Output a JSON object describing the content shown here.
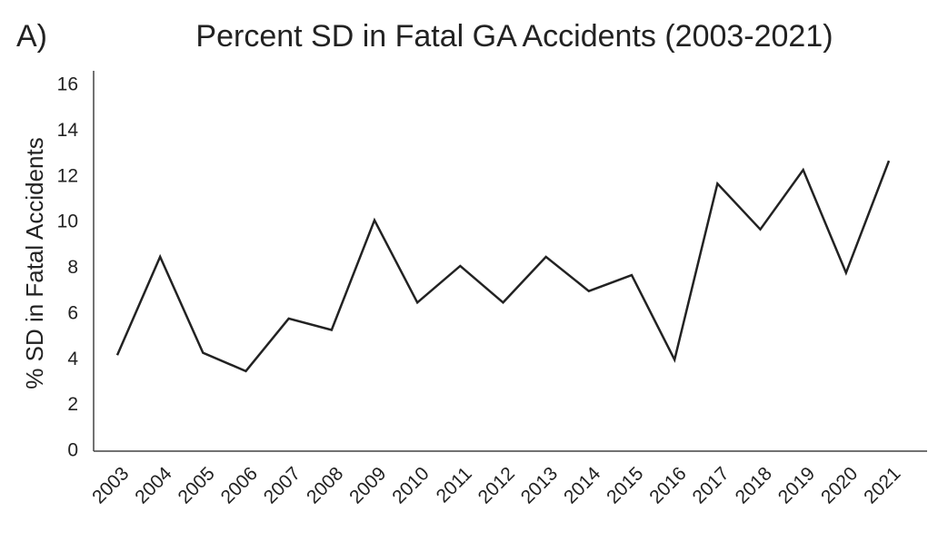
{
  "chart_data": {
    "type": "line",
    "panel_label": "A)",
    "title": "Percent SD in Fatal GA Accidents (2003-2021)",
    "y_label": "% SD in Fatal Accidents",
    "categories": [
      "2003",
      "2004",
      "2005",
      "2006",
      "2007",
      "2008",
      "2009",
      "2010",
      "2011",
      "2012",
      "2013",
      "2014",
      "2015",
      "2016",
      "2017",
      "2018",
      "2019",
      "2020",
      "2021"
    ],
    "values": [
      4.2,
      8.5,
      4.3,
      3.5,
      5.8,
      5.3,
      10.1,
      6.5,
      8.1,
      6.5,
      8.5,
      7.0,
      7.7,
      4.0,
      11.7,
      9.7,
      12.3,
      7.8,
      12.7
    ],
    "color": "#222222",
    "ylim": [
      0,
      16
    ],
    "yticks": [
      0,
      2,
      4,
      6,
      8,
      10,
      12,
      14,
      16
    ],
    "grid": false
  }
}
